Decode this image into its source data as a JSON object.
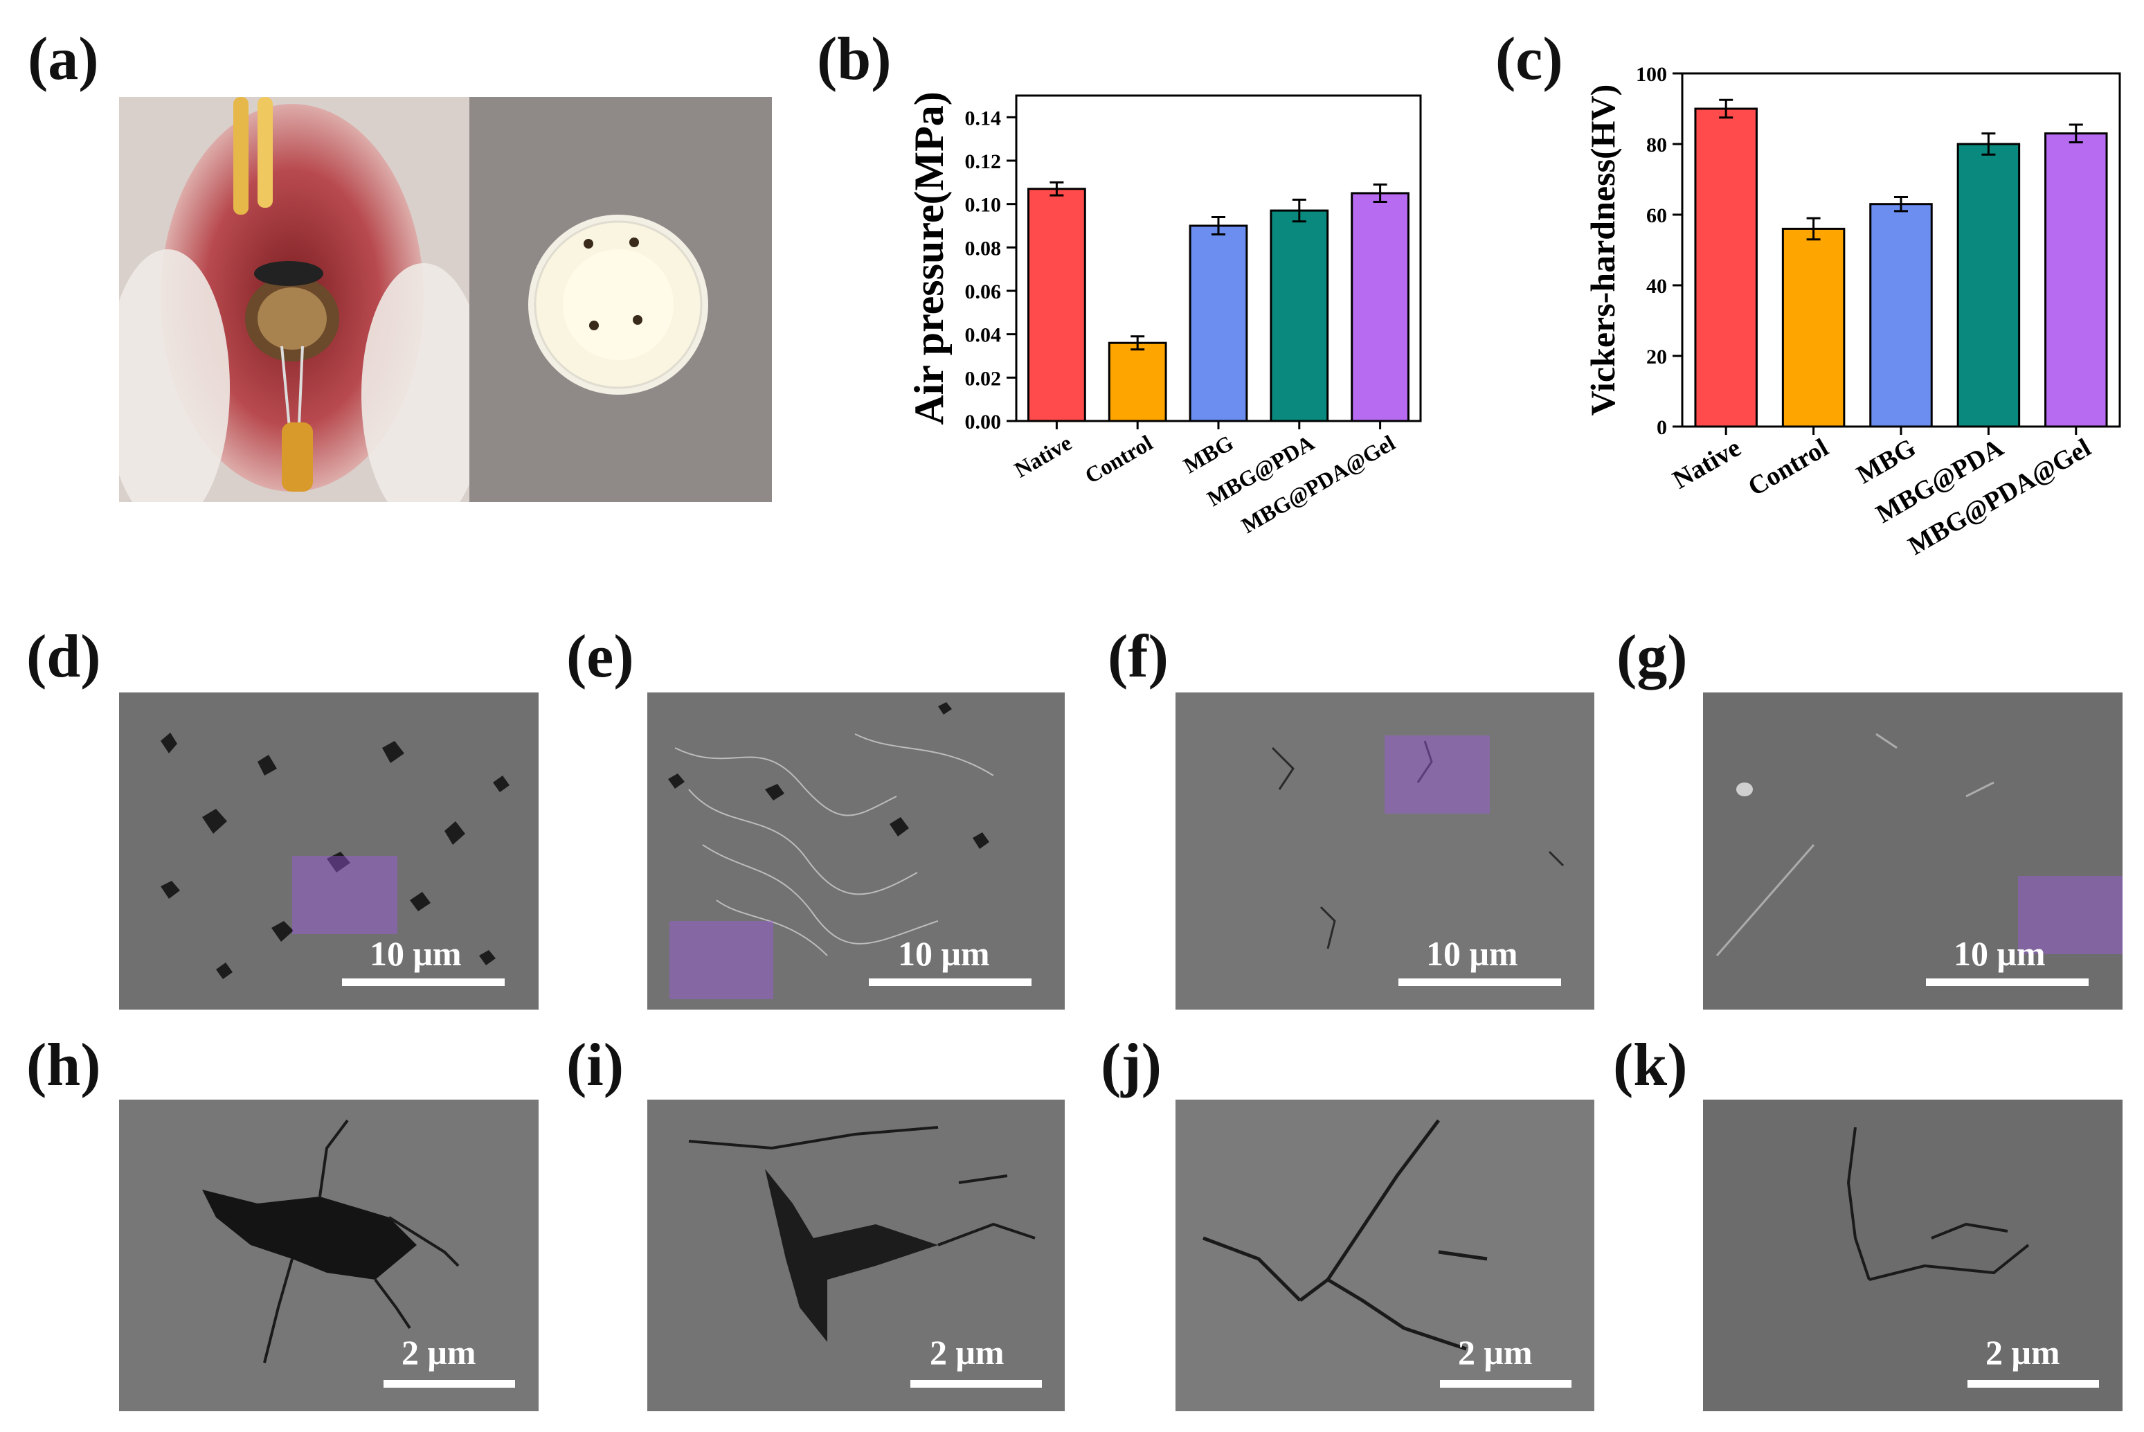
{
  "panels": {
    "a": "(a)",
    "b": "(b)",
    "c": "(c)",
    "d": "(d)",
    "e": "(e)",
    "f": "(f)",
    "g": "(g)",
    "h": "(h)",
    "i": "(i)",
    "j": "(j)",
    "k": "(k)"
  },
  "sem": {
    "top_row": [
      {
        "id": "d",
        "scale_label": "10 μm"
      },
      {
        "id": "e",
        "scale_label": "10 μm"
      },
      {
        "id": "f",
        "scale_label": "10 μm"
      },
      {
        "id": "g",
        "scale_label": "10 μm"
      }
    ],
    "bottom_row": [
      {
        "id": "h",
        "scale_label": "2 μm"
      },
      {
        "id": "i",
        "scale_label": "2 μm"
      },
      {
        "id": "j",
        "scale_label": "2 μm"
      },
      {
        "id": "k",
        "scale_label": "2 μm"
      }
    ]
  },
  "colors": {
    "Native": "#ff4b4b",
    "Control": "#ffa500",
    "MBG": "#6b8ef0",
    "MBG@PDA": "#0a8a7e",
    "MBG@PDA@Gel": "#b66bf0",
    "roi": "#a05ae6"
  },
  "chart_data": [
    {
      "panel": "b",
      "type": "bar",
      "categories": [
        "Native",
        "Control",
        "MBG",
        "MBG@PDA",
        "MBG@PDA@Gel"
      ],
      "values": [
        0.107,
        0.036,
        0.09,
        0.097,
        0.105
      ],
      "errors": [
        0.003,
        0.003,
        0.004,
        0.005,
        0.004
      ],
      "ylabel": "Air pressure(MPa)",
      "xlabel": "",
      "ylim": [
        0,
        0.15
      ],
      "yticks": [
        "0.00",
        "0.02",
        "0.04",
        "0.06",
        "0.08",
        "0.10",
        "0.12",
        "0.14"
      ],
      "grid": false
    },
    {
      "panel": "c",
      "type": "bar",
      "categories": [
        "Native",
        "Control",
        "MBG",
        "MBG@PDA",
        "MBG@PDA@Gel"
      ],
      "values": [
        90,
        56,
        63,
        80,
        83
      ],
      "errors": [
        2.5,
        3,
        2,
        3,
        2.5
      ],
      "ylabel": "Vickers-hardness(HV)",
      "xlabel": "",
      "ylim": [
        0,
        100
      ],
      "yticks": [
        "0",
        "20",
        "40",
        "60",
        "80",
        "100"
      ],
      "grid": false
    }
  ]
}
